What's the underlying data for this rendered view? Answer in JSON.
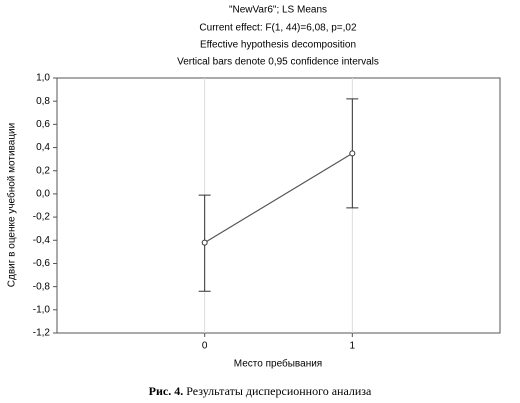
{
  "chart_data": {
    "type": "line",
    "title": "\"NewVar6\"; LS Means",
    "subtitle": [
      "Current effect: F(1, 44)=6,08, p=,02",
      "Effective hypothesis decomposition",
      "Vertical bars denote 0,95 confidence intervals"
    ],
    "x_label": "Место пребывания",
    "y_label": "Сдвиг в оценке учебной мотивации",
    "x": [
      0,
      1
    ],
    "values": [
      -0.42,
      0.35
    ],
    "lower": [
      -0.84,
      -0.12
    ],
    "upper": [
      -0.01,
      0.82
    ],
    "color": "#555555",
    "xlim": [
      -1,
      2
    ],
    "xticks": [
      0,
      1
    ],
    "ylim": [
      -1.2,
      1.0
    ],
    "yticks": [
      {
        "value": 1.0,
        "label": "1,0"
      },
      {
        "value": 0.8,
        "label": "0,8"
      },
      {
        "value": 0.6,
        "label": "0,6"
      },
      {
        "value": 0.4,
        "label": "0,4"
      },
      {
        "value": 0.2,
        "label": "0,2"
      },
      {
        "value": 0.0,
        "label": "0,0"
      },
      {
        "value": -0.2,
        "label": "-0,2"
      },
      {
        "value": -0.4,
        "label": "-0,4"
      },
      {
        "value": -0.6,
        "label": "-0,6"
      },
      {
        "value": -0.8,
        "label": "-0,8"
      },
      {
        "value": -1.0,
        "label": "-1,0"
      },
      {
        "value": -1.2,
        "label": "-1,2"
      }
    ],
    "grid": "x"
  },
  "caption": {
    "label": "Рис. 4.",
    "text": "Результаты дисперсионного анализа"
  }
}
